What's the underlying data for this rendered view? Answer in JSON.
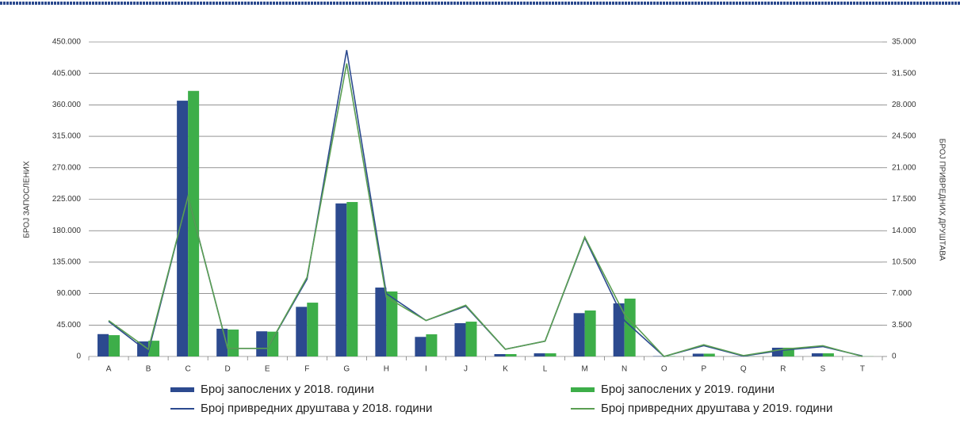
{
  "chart_data": {
    "type": "bar_line",
    "categories": [
      "A",
      "B",
      "C",
      "D",
      "E",
      "F",
      "G",
      "H",
      "I",
      "J",
      "K",
      "L",
      "M",
      "N",
      "O",
      "P",
      "Q",
      "R",
      "S",
      "T"
    ],
    "y_label": "БРОЈ ЗАПОСЛЕНИХ",
    "y2_label": "БРОЈ ПРИВРЕДНИХ ДРУШТАВА",
    "ylim": [
      0,
      450000
    ],
    "yticks": [
      0,
      {
        "value": 45000,
        "label": "45.000"
      },
      {
        "value": 90000,
        "label": "90.000"
      },
      {
        "value": 135000,
        "label": "135.000"
      },
      {
        "value": 180000,
        "label": "180.000"
      },
      {
        "value": 225000,
        "label": "225.000"
      },
      {
        "value": 270000,
        "label": "270.000"
      },
      {
        "value": 315000,
        "label": "315.000"
      },
      {
        "value": 360000,
        "label": "360.000"
      },
      {
        "value": 405000,
        "label": "405.000"
      },
      {
        "value": 450000,
        "label": "450.000"
      }
    ],
    "y2lim": [
      0,
      35000
    ],
    "y2ticks": [
      0,
      {
        "value": 3500,
        "label": "3.500"
      },
      {
        "value": 7000,
        "label": "7.000"
      },
      {
        "value": 10500,
        "label": "10.500"
      },
      {
        "value": 14000,
        "label": "14.000"
      },
      {
        "value": 17500,
        "label": "17.500"
      },
      {
        "value": 21000,
        "label": "21.000"
      },
      {
        "value": 24500,
        "label": "24.500"
      },
      {
        "value": 28000,
        "label": "28.000"
      },
      {
        "value": 31500,
        "label": "31.500"
      },
      {
        "value": 35000,
        "label": "35.000"
      }
    ],
    "grid": true,
    "legend": "bottom",
    "series": [
      {
        "name": "Број запослених  у 2018. години",
        "kind": "bar",
        "color": "#2c4a8f",
        "values": [
          32000,
          21500,
          366000,
          39700,
          36000,
          71000,
          219000,
          98600,
          28000,
          47600,
          3400,
          4500,
          62000,
          76000,
          500,
          4000,
          300,
          12500,
          4500,
          200
        ]
      },
      {
        "name": "Број запослених у 2019. години",
        "kind": "bar",
        "color": "#3dae49",
        "values": [
          30500,
          22500,
          380000,
          38500,
          35500,
          77000,
          221000,
          93000,
          31700,
          49800,
          3400,
          4500,
          65800,
          82800,
          500,
          4000,
          300,
          12500,
          4500,
          200
        ]
      },
      {
        "name": "Број привредних друштава у 2018. години",
        "kind": "line",
        "axis": "y2",
        "color": "#2c4a8f",
        "values": [
          3900,
          500,
          17800,
          900,
          900,
          8600,
          34100,
          7000,
          4000,
          5600,
          800,
          1700,
          13200,
          4000,
          0,
          1200,
          50,
          700,
          1100,
          50
        ]
      },
      {
        "name": "Број привредних друштава у 2019. години",
        "kind": "line",
        "axis": "y2",
        "color": "#5a9e52",
        "values": [
          4000,
          800,
          17800,
          900,
          900,
          8800,
          32600,
          6600,
          4000,
          5700,
          800,
          1700,
          13300,
          4700,
          0,
          1300,
          100,
          800,
          1200,
          0
        ]
      }
    ]
  }
}
